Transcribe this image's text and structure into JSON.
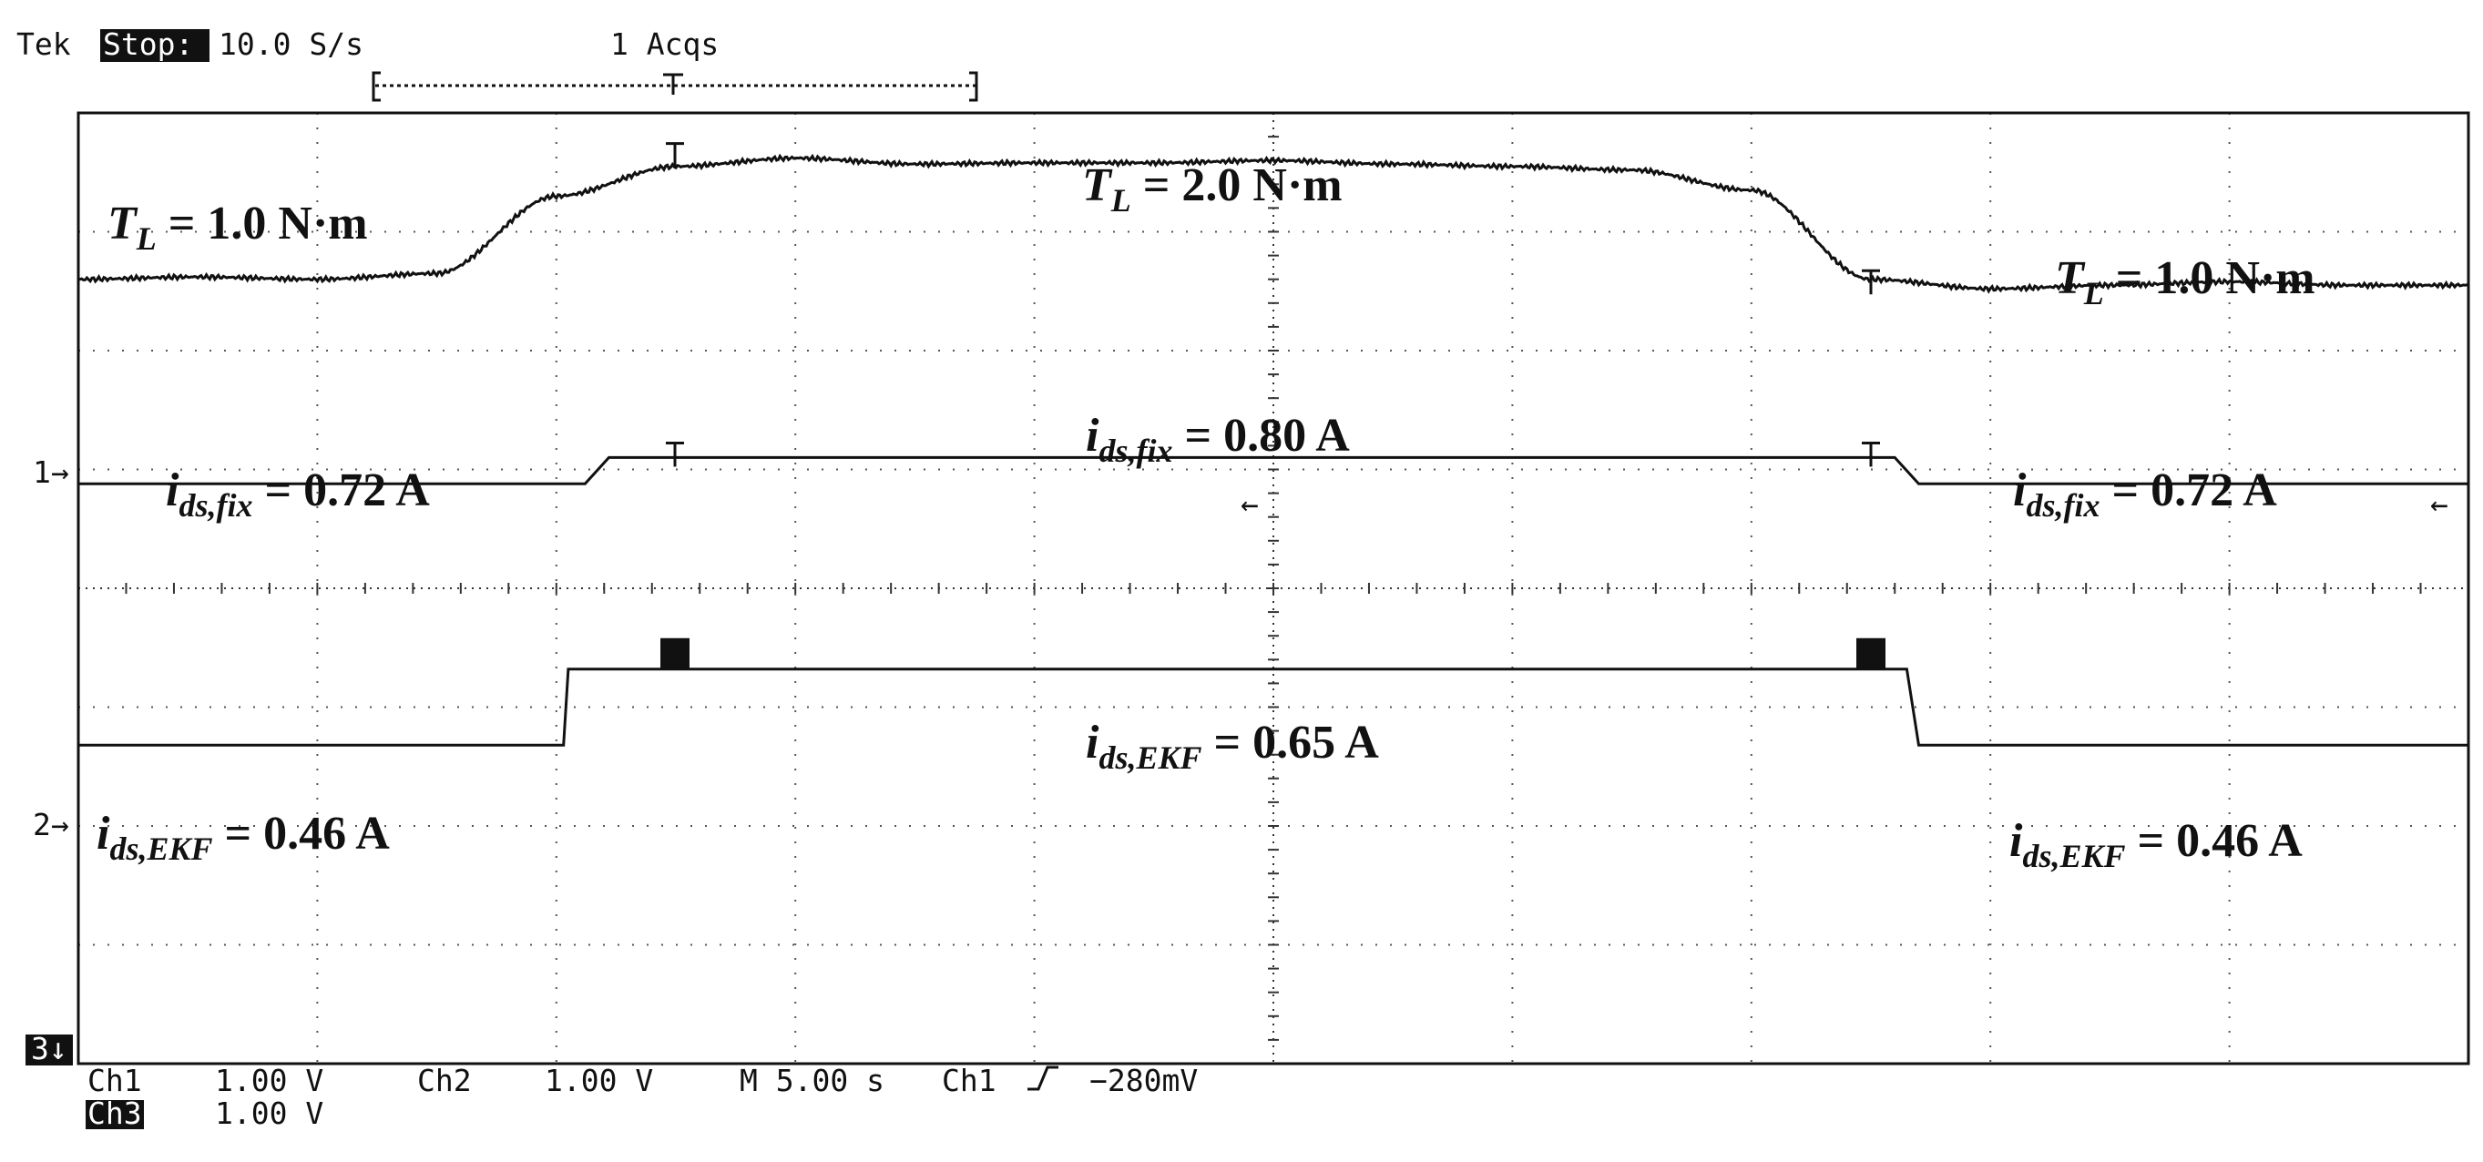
{
  "header": {
    "brand": "Tek",
    "state": "Stop:",
    "rate": "10.0 S/s",
    "acqs": "1 Acqs"
  },
  "footer": {
    "ch1_label": "Ch1",
    "ch1_scale": "1.00 V",
    "ch2_label": "Ch2",
    "ch2_scale": "1.00 V",
    "timebase": "M 5.00 s",
    "trigger_source": "Ch1",
    "trigger_level": "−280mV",
    "ch3_label": "Ch3",
    "ch3_scale": "1.00 V"
  },
  "markers": {
    "ch1": "1",
    "ch2": "2",
    "ch3": "3"
  },
  "chart_data": {
    "type": "line",
    "x_unit_per_div": "5.00 s",
    "divisions": {
      "x": 10,
      "y": 8
    },
    "grid": true,
    "series": [
      {
        "x": [
          0,
          0.5,
          1.0,
          1.5,
          2.0,
          2.5,
          3.0,
          3.5,
          4.0,
          4.5,
          5.0,
          5.5,
          6.0,
          6.5,
          7.0,
          7.5,
          8.0,
          8.5,
          9.0,
          9.5,
          10.0
        ],
        "y": [
          2.6,
          2.62,
          2.6,
          2.65,
          3.3,
          3.55,
          3.62,
          3.57,
          3.58,
          3.58,
          3.6,
          3.57,
          3.55,
          3.52,
          3.35,
          2.6,
          2.52,
          2.55,
          2.58,
          2.55,
          2.55
        ]
      },
      {
        "x": [
          0,
          2.12,
          2.22,
          7.6,
          7.7,
          10.0
        ],
        "y": [
          0.88,
          0.88,
          1.1,
          1.1,
          0.88,
          0.88
        ]
      },
      {
        "x": [
          0,
          2.03,
          2.05,
          7.65,
          7.7,
          10.0
        ],
        "y": [
          -1.32,
          -1.32,
          -0.68,
          -0.68,
          -1.32,
          -1.32
        ]
      }
    ],
    "annotations": [
      {
        "main": "T",
        "sub": "L",
        "value": "= 1.0 N·m"
      },
      {
        "main": "T",
        "sub": "L",
        "value": "= 2.0 N·m"
      },
      {
        "main": "T",
        "sub": "L",
        "value": "= 1.0 N·m"
      },
      {
        "main": "i",
        "sub": "ds,fix",
        "value": "= 0.72 A"
      },
      {
        "main": "i",
        "sub": "ds,fix",
        "value": "= 0.80 A"
      },
      {
        "main": "i",
        "sub": "ds,fix",
        "value": "= 0.72 A"
      },
      {
        "main": "i",
        "sub": "ds,EKF",
        "value": "= 0.46 A"
      },
      {
        "main": "i",
        "sub": "ds,EKF",
        "value": "= 0.65 A"
      },
      {
        "main": "i",
        "sub": "ds,EKF",
        "value": "= 0.46 A"
      }
    ]
  }
}
